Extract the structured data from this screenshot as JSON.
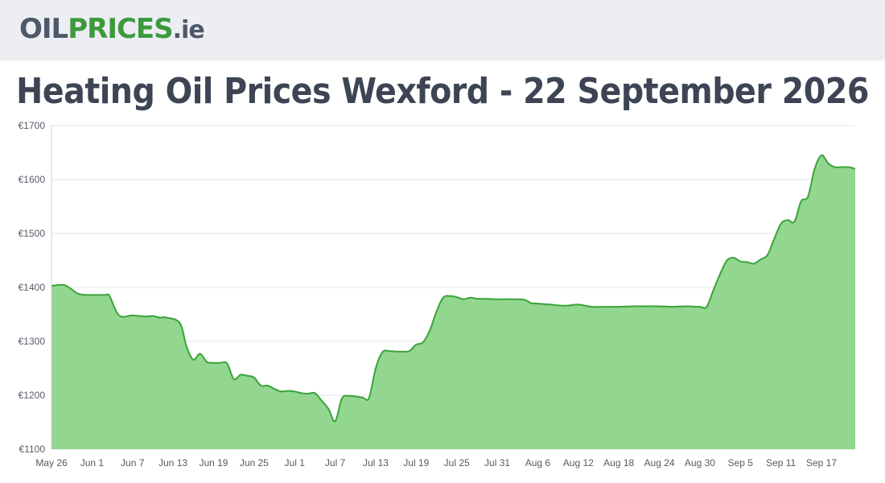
{
  "header": {
    "logo": {
      "part1": "OIL",
      "part2": "PRICES",
      "part3": ".ie"
    }
  },
  "page": {
    "title": "Heating Oil Prices Wexford - 22 September 2026"
  },
  "colors": {
    "line": "#3aa33a",
    "fill": "#92d68f",
    "grid": "#e6e6e6",
    "header_bg": "#eceef3",
    "title": "#3d4454"
  },
  "chart_data": {
    "type": "area",
    "title": "",
    "xlabel": "",
    "ylabel": "",
    "ylim": [
      1100,
      1700
    ],
    "yticks": [
      1100,
      1200,
      1300,
      1400,
      1500,
      1600,
      1700
    ],
    "ytick_labels": [
      "€1100",
      "€1200",
      "€1300",
      "€1400",
      "€1500",
      "€1600",
      "€1700"
    ],
    "xlim": [
      0,
      119
    ],
    "xticks": [
      {
        "day": 0,
        "label": "May 26"
      },
      {
        "day": 6,
        "label": "Jun 1"
      },
      {
        "day": 12,
        "label": "Jun 7"
      },
      {
        "day": 18,
        "label": "Jun 13"
      },
      {
        "day": 24,
        "label": "Jun 19"
      },
      {
        "day": 30,
        "label": "Jun 25"
      },
      {
        "day": 36,
        "label": "Jul 1"
      },
      {
        "day": 42,
        "label": "Jul 7"
      },
      {
        "day": 48,
        "label": "Jul 13"
      },
      {
        "day": 54,
        "label": "Jul 19"
      },
      {
        "day": 60,
        "label": "Jul 25"
      },
      {
        "day": 66,
        "label": "Jul 31"
      },
      {
        "day": 72,
        "label": "Aug 6"
      },
      {
        "day": 78,
        "label": "Aug 12"
      },
      {
        "day": 84,
        "label": "Aug 18"
      },
      {
        "day": 90,
        "label": "Aug 24"
      },
      {
        "day": 96,
        "label": "Aug 30"
      },
      {
        "day": 102,
        "label": "Sep 5"
      },
      {
        "day": 108,
        "label": "Sep 11"
      },
      {
        "day": 114,
        "label": "Sep 17"
      }
    ],
    "grid": true,
    "legend": "none",
    "series": [
      {
        "x": [
          0,
          2,
          4,
          6,
          8,
          8.6,
          10,
          12,
          14,
          15,
          16,
          17,
          19,
          20,
          21,
          22,
          23,
          24,
          25,
          26,
          27,
          28,
          29,
          30,
          31,
          32,
          33,
          34,
          35,
          36,
          37,
          38,
          39,
          40,
          41,
          42,
          43,
          44,
          46,
          47,
          48,
          49,
          50,
          51,
          52,
          53,
          54,
          55,
          56,
          57,
          58,
          59,
          60,
          61,
          62,
          63,
          64,
          66,
          68,
          70,
          71,
          72,
          74,
          76,
          78,
          80,
          82,
          84,
          86,
          88,
          90,
          92,
          94,
          96,
          97,
          98,
          99,
          100,
          101,
          102,
          103,
          104,
          105,
          106,
          107,
          108,
          109,
          110,
          111,
          112,
          113,
          114,
          115,
          116,
          117,
          118,
          119
        ],
        "y": [
          1403,
          1404,
          1388,
          1386,
          1386,
          1384,
          1348,
          1348,
          1346,
          1347,
          1344,
          1344,
          1334,
          1290,
          1266,
          1277,
          1262,
          1260,
          1260,
          1259,
          1230,
          1238,
          1236,
          1233,
          1218,
          1218,
          1212,
          1207,
          1208,
          1207,
          1204,
          1203,
          1204,
          1190,
          1175,
          1152,
          1194,
          1199,
          1196,
          1195,
          1250,
          1280,
          1282,
          1281,
          1281,
          1282,
          1294,
          1298,
          1320,
          1355,
          1381,
          1384,
          1382,
          1378,
          1381,
          1379,
          1379,
          1378,
          1378,
          1377,
          1371,
          1370,
          1368,
          1366,
          1368,
          1364,
          1364,
          1364,
          1365,
          1365,
          1365,
          1364,
          1365,
          1364,
          1364,
          1395,
          1425,
          1450,
          1455,
          1448,
          1447,
          1444,
          1452,
          1460,
          1490,
          1518,
          1525,
          1522,
          1560,
          1568,
          1620,
          1645,
          1630,
          1623,
          1623,
          1623,
          1620
        ]
      }
    ]
  }
}
